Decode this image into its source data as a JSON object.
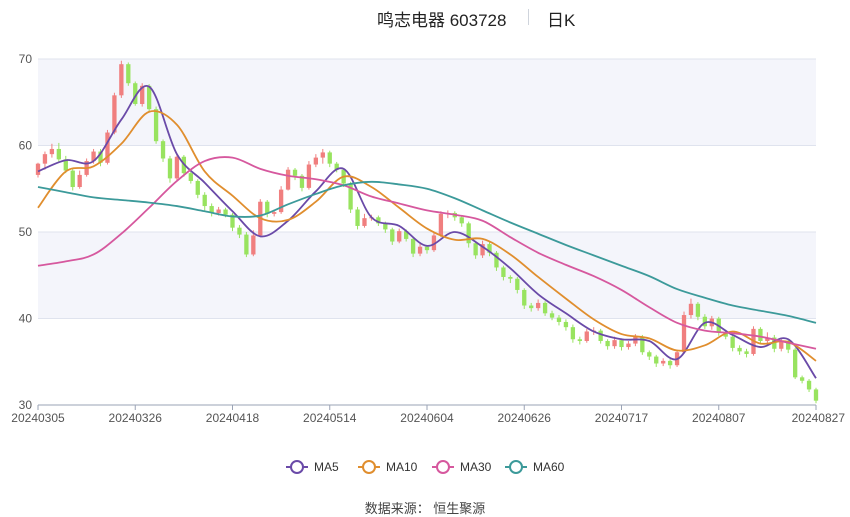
{
  "header": {
    "title": "鸣志电器 603728",
    "period": "日K"
  },
  "footer": {
    "source": "数据来源： 恒生聚源"
  },
  "colors": {
    "up": "#f07f7f",
    "down": "#98e35f",
    "ma5": "#6a4aa8",
    "ma10": "#e08e2e",
    "ma30": "#d6589e",
    "ma60": "#3c9a9a",
    "plot_bg_band": "#f4f5fb",
    "grid": "#dfe3ee"
  },
  "chart_data": {
    "type": "candlestick",
    "ylim": [
      30,
      70
    ],
    "yticks": [
      30,
      40,
      50,
      60,
      70
    ],
    "x_tick_labels": [
      "20240305",
      "20240326",
      "20240418",
      "20240514",
      "20240604",
      "20240626",
      "20240717",
      "20240807",
      "20240827"
    ],
    "x_tick_index": [
      0,
      14,
      28,
      42,
      56,
      70,
      84,
      98,
      112
    ],
    "legend": [
      "MA5",
      "MA10",
      "MA30",
      "MA60"
    ],
    "candles_ohlc": [
      [
        56.6,
        57.9,
        56.3,
        58.0
      ],
      [
        57.9,
        59.0,
        57.2,
        59.3
      ],
      [
        59.0,
        59.6,
        58.6,
        60.2
      ],
      [
        59.6,
        58.4,
        58.1,
        60.3
      ],
      [
        58.4,
        57.1,
        56.8,
        58.8
      ],
      [
        57.1,
        55.2,
        54.8,
        57.3
      ],
      [
        55.2,
        56.6,
        55.0,
        57.1
      ],
      [
        56.6,
        58.2,
        56.4,
        58.5
      ],
      [
        58.2,
        59.3,
        57.9,
        59.6
      ],
      [
        59.3,
        58.0,
        57.6,
        59.6
      ],
      [
        58.0,
        61.5,
        57.8,
        61.8
      ],
      [
        61.5,
        65.8,
        61.3,
        66.1
      ],
      [
        65.8,
        69.4,
        65.5,
        69.8
      ],
      [
        69.4,
        67.2,
        66.9,
        69.6
      ],
      [
        67.2,
        64.8,
        64.6,
        67.4
      ],
      [
        64.8,
        66.9,
        64.5,
        67.2
      ],
      [
        66.9,
        64.2,
        63.8,
        67.1
      ],
      [
        64.2,
        60.5,
        60.2,
        64.5
      ],
      [
        60.5,
        58.5,
        58.1,
        60.7
      ],
      [
        58.5,
        56.2,
        55.7,
        58.8
      ],
      [
        56.2,
        58.7,
        56.0,
        59.1
      ],
      [
        58.7,
        56.8,
        56.4,
        58.9
      ],
      [
        56.8,
        55.9,
        55.6,
        57.0
      ],
      [
        55.9,
        54.3,
        53.9,
        56.1
      ],
      [
        54.3,
        53.0,
        52.5,
        54.6
      ],
      [
        53.0,
        52.2,
        51.8,
        53.3
      ],
      [
        52.2,
        52.6,
        51.9,
        52.9
      ],
      [
        52.6,
        52.0,
        51.7,
        52.8
      ],
      [
        52.0,
        50.5,
        50.1,
        52.2
      ],
      [
        50.5,
        49.7,
        49.3,
        50.8
      ],
      [
        49.7,
        47.4,
        47.1,
        50.0
      ],
      [
        47.4,
        49.6,
        47.2,
        50.2
      ],
      [
        49.6,
        53.5,
        49.4,
        53.8
      ],
      [
        53.5,
        52.1,
        51.7,
        53.7
      ],
      [
        52.1,
        52.3,
        51.8,
        52.6
      ],
      [
        52.3,
        54.9,
        52.1,
        55.3
      ],
      [
        54.9,
        57.2,
        54.8,
        57.5
      ],
      [
        57.2,
        56.5,
        56.0,
        57.4
      ],
      [
        56.5,
        55.1,
        54.7,
        56.7
      ],
      [
        55.1,
        57.8,
        54.9,
        58.2
      ],
      [
        57.8,
        58.6,
        57.5,
        59.0
      ],
      [
        58.6,
        59.2,
        57.9,
        59.6
      ],
      [
        59.2,
        57.9,
        57.5,
        59.4
      ],
      [
        57.9,
        57.2,
        56.9,
        58.1
      ],
      [
        57.2,
        55.6,
        55.2,
        57.4
      ],
      [
        55.6,
        52.6,
        52.2,
        55.8
      ],
      [
        52.6,
        50.7,
        50.3,
        52.9
      ],
      [
        50.7,
        51.6,
        50.5,
        52.1
      ],
      [
        51.6,
        51.7,
        51.3,
        52.0
      ],
      [
        51.7,
        51.0,
        50.7,
        51.9
      ],
      [
        51.0,
        50.3,
        49.9,
        51.2
      ],
      [
        50.3,
        48.9,
        48.5,
        50.5
      ],
      [
        48.9,
        50.1,
        48.7,
        50.4
      ],
      [
        50.1,
        49.2,
        48.9,
        50.3
      ],
      [
        49.2,
        47.5,
        47.1,
        49.4
      ],
      [
        47.5,
        48.3,
        47.2,
        48.8
      ],
      [
        48.3,
        47.9,
        47.5,
        48.5
      ],
      [
        47.9,
        49.6,
        47.7,
        50.0
      ],
      [
        49.6,
        52.1,
        49.4,
        52.4
      ],
      [
        52.1,
        52.2,
        51.6,
        52.5
      ],
      [
        52.2,
        51.7,
        51.3,
        52.4
      ],
      [
        51.7,
        51.0,
        50.6,
        51.9
      ],
      [
        51.0,
        48.7,
        48.2,
        51.2
      ],
      [
        48.7,
        47.3,
        46.9,
        48.9
      ],
      [
        47.3,
        48.6,
        47.0,
        49.0
      ],
      [
        48.6,
        47.6,
        47.2,
        48.9
      ],
      [
        47.6,
        45.9,
        45.5,
        47.8
      ],
      [
        45.9,
        44.8,
        44.4,
        46.1
      ],
      [
        44.8,
        44.6,
        44.1,
        45.0
      ],
      [
        44.6,
        43.3,
        42.9,
        44.8
      ],
      [
        43.3,
        41.5,
        41.1,
        43.5
      ],
      [
        41.5,
        41.2,
        40.8,
        41.8
      ],
      [
        41.2,
        41.8,
        40.9,
        42.2
      ],
      [
        41.8,
        40.6,
        40.3,
        42.0
      ],
      [
        40.6,
        40.1,
        39.8,
        40.9
      ],
      [
        40.1,
        39.6,
        39.2,
        40.4
      ],
      [
        39.6,
        39.0,
        38.6,
        39.9
      ],
      [
        39.0,
        37.6,
        37.2,
        39.3
      ],
      [
        37.6,
        37.4,
        37.0,
        37.9
      ],
      [
        37.4,
        38.5,
        37.2,
        38.8
      ],
      [
        38.5,
        38.6,
        38.1,
        39.0
      ],
      [
        38.6,
        37.4,
        37.1,
        38.8
      ],
      [
        37.4,
        36.8,
        36.4,
        37.6
      ],
      [
        36.8,
        37.5,
        36.5,
        37.9
      ],
      [
        37.5,
        36.7,
        36.3,
        37.7
      ],
      [
        36.7,
        37.1,
        36.4,
        37.4
      ],
      [
        37.1,
        37.9,
        36.8,
        38.2
      ],
      [
        37.9,
        36.1,
        35.8,
        38.1
      ],
      [
        36.1,
        35.6,
        35.2,
        36.3
      ],
      [
        35.6,
        34.8,
        34.4,
        35.8
      ],
      [
        34.8,
        35.1,
        34.5,
        35.4
      ],
      [
        35.1,
        34.6,
        34.2,
        35.3
      ],
      [
        34.6,
        36.1,
        34.4,
        36.4
      ],
      [
        36.1,
        40.4,
        35.9,
        40.8
      ],
      [
        40.4,
        41.7,
        40.0,
        42.3
      ],
      [
        41.7,
        40.2,
        39.8,
        41.9
      ],
      [
        40.2,
        39.1,
        38.8,
        40.5
      ],
      [
        39.1,
        40.0,
        38.7,
        40.3
      ],
      [
        40.0,
        38.4,
        38.0,
        40.2
      ],
      [
        38.4,
        37.9,
        37.6,
        38.7
      ],
      [
        37.9,
        36.6,
        36.2,
        38.1
      ],
      [
        36.6,
        36.2,
        35.8,
        36.9
      ],
      [
        36.2,
        35.9,
        35.5,
        36.5
      ],
      [
        35.9,
        38.8,
        35.7,
        39.1
      ],
      [
        38.8,
        37.4,
        37.1,
        39.0
      ],
      [
        37.4,
        37.8,
        37.0,
        38.4
      ],
      [
        37.8,
        36.5,
        36.1,
        38.1
      ],
      [
        36.5,
        37.4,
        36.2,
        37.8
      ],
      [
        37.4,
        36.4,
        36.0,
        37.6
      ],
      [
        36.4,
        33.2,
        33.0,
        36.6
      ],
      [
        33.2,
        32.8,
        32.5,
        33.4
      ],
      [
        32.8,
        31.8,
        31.5,
        33.0
      ],
      [
        31.8,
        30.5,
        30.2,
        32.0
      ]
    ],
    "ma_anchor_index": [
      0,
      4,
      8,
      12,
      16,
      20,
      24,
      28,
      32,
      36,
      40,
      44,
      48,
      52,
      56,
      60,
      64,
      68,
      72,
      76,
      80,
      84,
      88,
      92,
      96,
      100,
      104,
      108,
      112
    ],
    "ma_series": [
      {
        "name": "MA5",
        "values": [
          57.0,
          58.3,
          58.2,
          63.0,
          66.8,
          59.0,
          55.7,
          52.4,
          49.5,
          51.3,
          54.7,
          57.3,
          51.7,
          50.7,
          48.4,
          50.0,
          48.3,
          45.8,
          42.8,
          40.6,
          38.5,
          37.6,
          37.4,
          35.3,
          39.5,
          38.1,
          36.7,
          37.6,
          33.1
        ]
      },
      {
        "name": "MA10",
        "values": [
          52.8,
          57.0,
          57.6,
          60.2,
          63.9,
          62.4,
          57.0,
          54.2,
          51.6,
          51.4,
          53.5,
          56.4,
          55.2,
          52.8,
          50.4,
          49.1,
          49.2,
          47.4,
          44.8,
          42.3,
          39.9,
          38.2,
          37.7,
          36.3,
          36.9,
          38.5,
          37.1,
          37.3,
          35.1
        ]
      },
      {
        "name": "MA30",
        "values": [
          46.1,
          46.6,
          47.4,
          49.8,
          52.8,
          55.9,
          58.2,
          58.6,
          57.3,
          56.5,
          56.1,
          55.4,
          54.1,
          53.3,
          52.5,
          52.0,
          51.3,
          49.4,
          47.6,
          46.2,
          44.9,
          43.3,
          41.3,
          39.5,
          38.6,
          38.3,
          37.9,
          37.2,
          36.5
        ]
      },
      {
        "name": "MA60",
        "values": [
          55.2,
          54.6,
          54.0,
          53.7,
          53.4,
          53.0,
          52.4,
          51.8,
          51.9,
          53.2,
          54.4,
          55.4,
          55.8,
          55.5,
          55.0,
          53.9,
          52.5,
          51.1,
          49.8,
          48.5,
          47.3,
          46.1,
          44.9,
          43.4,
          42.4,
          41.5,
          40.9,
          40.3,
          39.5
        ]
      }
    ]
  }
}
